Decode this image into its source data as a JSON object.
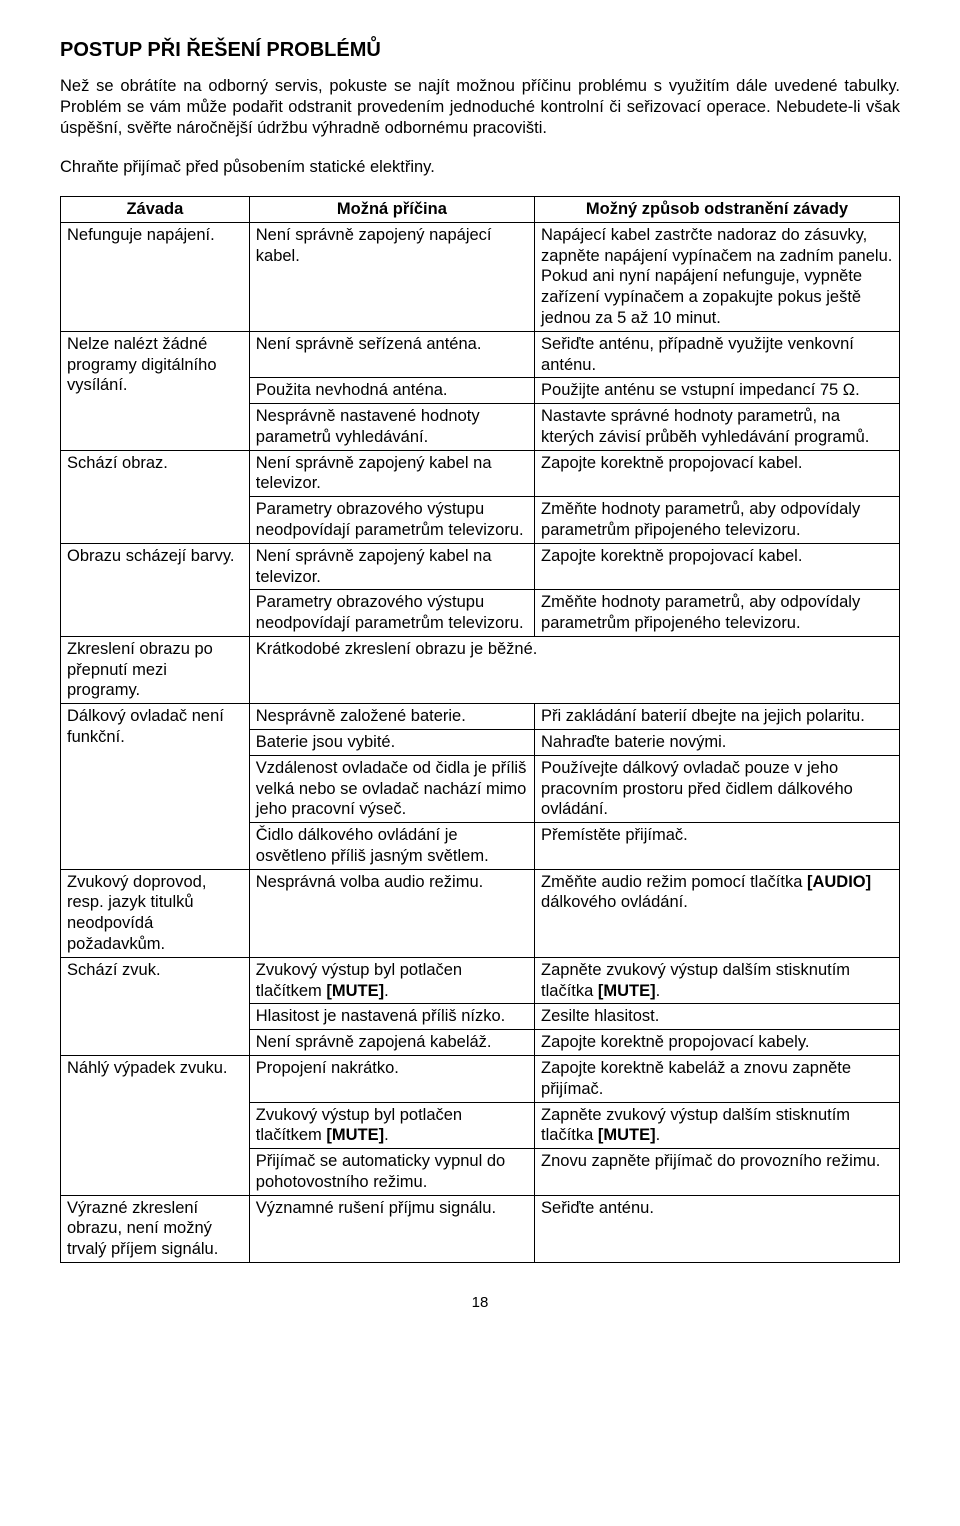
{
  "title": "POSTUP PŘI ŘEŠENÍ PROBLÉMŮ",
  "intro": "Než se obrátíte na odborný servis, pokuste se najít možnou příčinu problému s využitím dále uvedené tabulky. Problém se vám může podařit odstranit provedením jednoduché kontrolní či seřizovací operace. Nebudete-li však úspěšní, svěřte náročnější údržbu výhradně odbornému pracovišti.",
  "note": "Chraňte přijímač před působením statické elektřiny.",
  "headers": {
    "h1": "Závada",
    "h2": "Možná příčina",
    "h3": "Možný způsob odstranění závady"
  },
  "r0": {
    "a": "Nefunguje napájení.",
    "b": "Není správně zapojený napájecí kabel.",
    "c": "Napájecí kabel zastrčte nadoraz do zásuvky, zapněte napájení vypínačem na zadním panelu. Pokud ani nyní napájení nefunguje, vypněte zařízení vypínačem a zopakujte pokus ještě jednou za 5 až 10 minut."
  },
  "r1": {
    "a": "Nelze nalézt žádné programy digitálního vysílání.",
    "b0": "Není správně seřízená anténa.",
    "c0": "Seřiďte anténu, případně využijte venkovní anténu.",
    "b1": "Použita nevhodná anténa.",
    "c1": "Použijte anténu se vstupní impedancí 75 Ω.",
    "b2": "Nesprávně nastavené hodnoty parametrů vyhledávání.",
    "c2": "Nastavte správné hodnoty parametrů, na kterých závisí průběh vyhledávání programů."
  },
  "r2": {
    "a": "Schází obraz.",
    "b0": "Není správně zapojený kabel na televizor.",
    "c0": "Zapojte korektně propojovací kabel.",
    "b1": "Parametry obrazového výstupu neodpovídají parametrům televizoru.",
    "c1": "Změňte hodnoty parametrů, aby odpovídaly parametrům připojeného televizoru."
  },
  "r3": {
    "a": "Obrazu scházejí barvy.",
    "b0": "Není správně zapojený kabel na televizor.",
    "c0": "Zapojte korektně propojovací kabel.",
    "b1": "Parametry obrazového výstupu neodpovídají parametrům televizoru.",
    "c1": "Změňte hodnoty parametrů, aby odpovídaly parametrům připojeného televizoru."
  },
  "r4": {
    "a": "Zkreslení obrazu po přepnutí mezi programy.",
    "b": "Krátkodobé zkreslení obrazu je běžné."
  },
  "r5": {
    "a": "Dálkový ovladač není funkční.",
    "b0": "Nesprávně založené baterie.",
    "c0": "Při zakládání baterií dbejte na jejich polaritu.",
    "b1": "Baterie jsou vybité.",
    "c1": "Nahraďte baterie novými.",
    "b2": "Vzdálenost ovladače od čidla je příliš velká nebo se ovladač nachází mimo jeho pracovní výseč.",
    "c2": "Používejte dálkový ovladač pouze v jeho pracovním prostoru před čidlem dálkového ovládání.",
    "b3": "Čidlo dálkového ovládání je osvětleno příliš jasným světlem.",
    "c3": "Přemístěte přijímač."
  },
  "r6": {
    "a": "Zvukový doprovod, resp. jazyk titulků neodpovídá požadavkům.",
    "b": "Nesprávná volba audio režimu.",
    "c_pre": "Změňte audio režim pomocí tlačítka ",
    "c_bold": "[AUDIO]",
    "c_post": " dálkového ovládání."
  },
  "r7": {
    "a": "Schází zvuk.",
    "b0_pre": "Zvukový výstup byl potlačen tlačítkem ",
    "b0_bold": "[MUTE]",
    "b0_post": ".",
    "c0_pre": "Zapněte zvukový výstup dalším stisknutím tlačítka ",
    "c0_bold": "[MUTE]",
    "c0_post": ".",
    "b1": "Hlasitost je nastavená příliš nízko.",
    "c1": "Zesilte hlasitost.",
    "b2": "Není správně zapojená kabeláž.",
    "c2": "Zapojte korektně propojovací kabely."
  },
  "r8": {
    "a": "Náhlý výpadek zvuku.",
    "b0": "Propojení nakrátko.",
    "c0": "Zapojte korektně kabeláž a znovu zapněte přijímač.",
    "b1_pre": "Zvukový výstup byl potlačen tlačítkem ",
    "b1_bold": "[MUTE]",
    "b1_post": ".",
    "c1_pre": "Zapněte zvukový výstup dalším stisknutím tlačítka ",
    "c1_bold": "[MUTE]",
    "c1_post": ".",
    "b2": "Přijímač se automaticky vypnul do pohotovostního režimu.",
    "c2": "Znovu zapněte přijímač do provozního režimu."
  },
  "r9": {
    "a": "Výrazné zkreslení obrazu, není možný trvalý příjem signálu.",
    "b": "Významné rušení příjmu signálu.",
    "c": "Seřiďte anténu."
  },
  "page": "18"
}
